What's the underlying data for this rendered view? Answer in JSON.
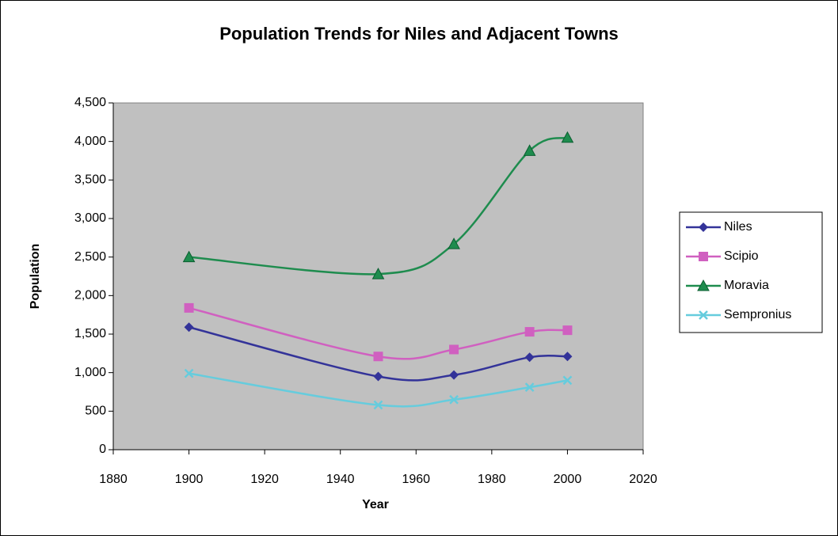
{
  "chart_data": {
    "type": "line",
    "title": "Population Trends for Niles and Adjacent Towns",
    "x_label": "Year",
    "y_label": "Population",
    "x": [
      1900,
      1950,
      1970,
      1990,
      2000
    ],
    "series": [
      {
        "name": "Niles",
        "color": "#333399",
        "marker": "diamond",
        "values": [
          1590,
          950,
          970,
          1200,
          1210
        ]
      },
      {
        "name": "Scipio",
        "color": "#d060c0",
        "marker": "square",
        "values": [
          1840,
          1210,
          1300,
          1530,
          1550
        ]
      },
      {
        "name": "Moravia",
        "color": "#1e8c4e",
        "marker": "triangle",
        "values": [
          2500,
          2280,
          2670,
          3880,
          4050
        ]
      },
      {
        "name": "Sempronius",
        "color": "#66ccdd",
        "marker": "x",
        "values": [
          990,
          580,
          650,
          810,
          900
        ]
      }
    ],
    "xlim": [
      1880,
      2020
    ],
    "xticks": [
      1880,
      1900,
      1920,
      1940,
      1960,
      1980,
      2000,
      2020
    ],
    "ylim": [
      0,
      4500
    ],
    "yticks": [
      0,
      500,
      {
        "value": 1000,
        "label": "1,000"
      },
      {
        "value": 1500,
        "label": "1,500"
      },
      {
        "value": 2000,
        "label": "2,000"
      },
      {
        "value": 2500,
        "label": "2,500"
      },
      {
        "value": 3000,
        "label": "3,000"
      },
      {
        "value": 3500,
        "label": "3,500"
      },
      {
        "value": 4000,
        "label": "4,000"
      },
      {
        "value": 4500,
        "label": "4,500"
      }
    ],
    "smooth": true,
    "plot_background": "#c0c0c0",
    "legend": "right"
  }
}
